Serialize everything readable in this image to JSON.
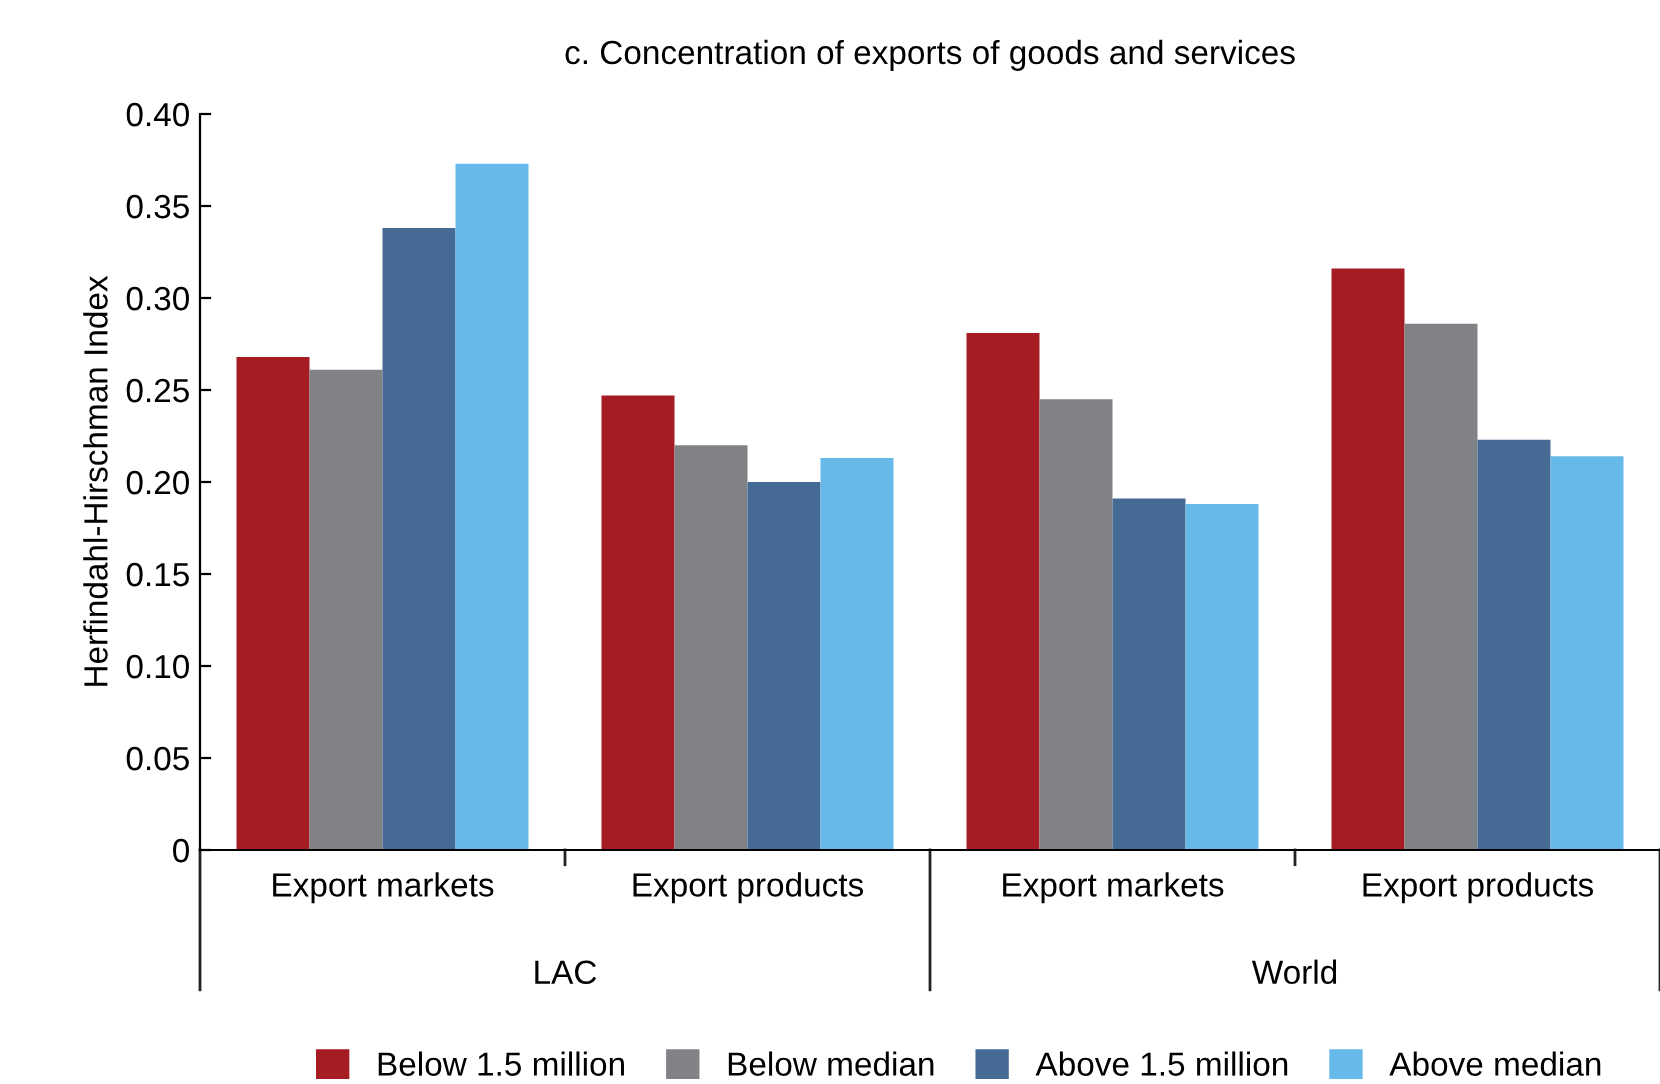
{
  "chart_data": {
    "type": "bar",
    "title": "c. Concentration of exports of goods and services",
    "ylabel": "Herfindahl-Hirschman Index",
    "categories": [
      "Export markets",
      "Export products",
      "Export markets",
      "Export products"
    ],
    "series": [
      {
        "name": "Below 1.5 million",
        "color": "#a51c22",
        "values": [
          0.268,
          0.247,
          0.281,
          0.316
        ]
      },
      {
        "name": "Below median",
        "color": "#818286",
        "values": [
          0.261,
          0.22,
          0.245,
          0.286
        ]
      },
      {
        "name": "Above 1.5 million",
        "color": "#456a94",
        "values": [
          0.338,
          0.2,
          0.191,
          0.223
        ]
      },
      {
        "name": "Above median",
        "color": "#66b9e8",
        "values": [
          0.373,
          0.213,
          0.188,
          0.214
        ]
      }
    ],
    "annotations": [
      "LAC",
      "World"
    ],
    "ylim": [
      0,
      0.4
    ],
    "yticks": [
      {
        "value": 0,
        "label": "0"
      },
      {
        "value": 0.05,
        "label": "0.05"
      },
      {
        "value": 0.1,
        "label": "0.10"
      },
      {
        "value": 0.15,
        "label": "0.15"
      },
      {
        "value": 0.2,
        "label": "0.20"
      },
      {
        "value": 0.25,
        "label": "0.25"
      },
      {
        "value": 0.3,
        "label": "0.30"
      },
      {
        "value": 0.35,
        "label": "0.35"
      },
      {
        "value": 0.4,
        "label": "0.40"
      }
    ],
    "grid": false,
    "legend": "bottom"
  }
}
